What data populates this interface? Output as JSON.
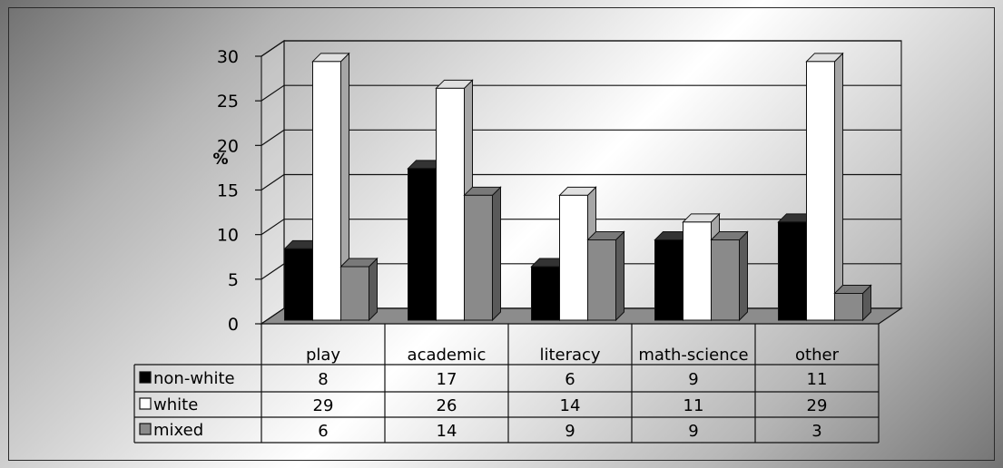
{
  "chart_data": {
    "type": "bar",
    "ylabel": "%",
    "ylim": [
      0,
      30
    ],
    "yticks": [
      "0",
      "5",
      "10",
      "15",
      "20",
      "25",
      "30"
    ],
    "categories": [
      "play",
      "academic",
      "literacy",
      "math-science",
      "other"
    ],
    "series": [
      {
        "name": "non-white",
        "values": [
          8,
          17,
          6,
          9,
          11
        ],
        "color": "#000000"
      },
      {
        "name": "white",
        "values": [
          29,
          26,
          14,
          11,
          29
        ],
        "color": "#ffffff"
      },
      {
        "name": "mixed",
        "values": [
          6,
          14,
          9,
          9,
          3
        ],
        "color": "#8a8a8a"
      }
    ],
    "data_table": true,
    "legend": "data-table-rows",
    "grid": true,
    "three_d": true
  }
}
